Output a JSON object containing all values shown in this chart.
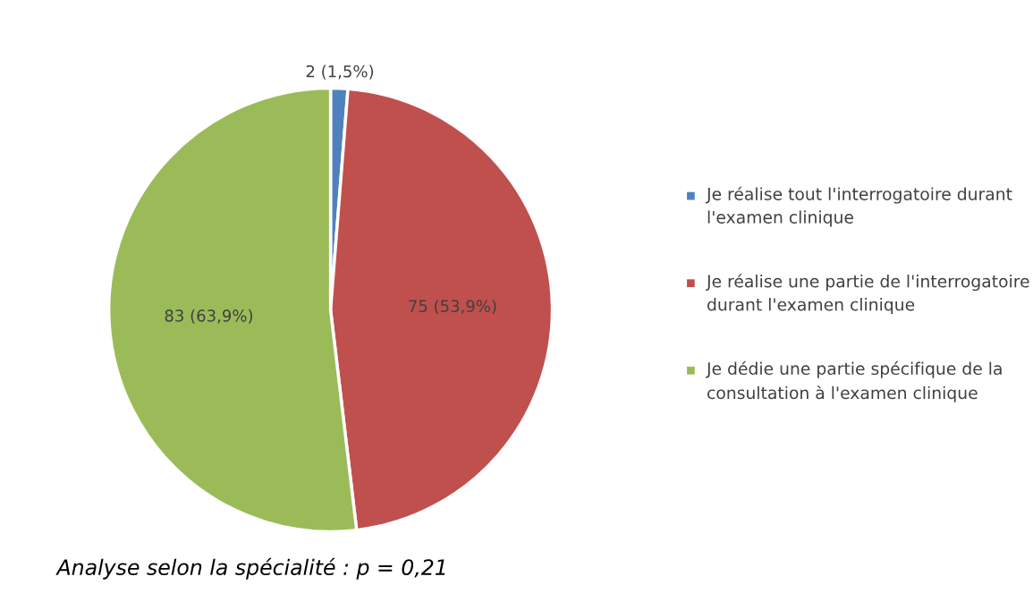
{
  "chart_data": {
    "type": "pie",
    "categories": [
      "Je réalise tout l'interrogatoire durant l'examen clinique",
      "Je réalise une partie de l'interrogatoire durant l'examen clinique",
      "Je dédie une partie spécifique de la consultation à l'examen clinique"
    ],
    "values": [
      2,
      75,
      83
    ],
    "colors": [
      "#4f81bd",
      "#c0504d",
      "#9bbb59"
    ],
    "value_labels": [
      "2 (1,5%)",
      "75 (53,9%)",
      "83 (63,9%)"
    ],
    "legend": "right",
    "annotations": [
      "Analyse selon la spécialité : p = 0,21"
    ]
  }
}
